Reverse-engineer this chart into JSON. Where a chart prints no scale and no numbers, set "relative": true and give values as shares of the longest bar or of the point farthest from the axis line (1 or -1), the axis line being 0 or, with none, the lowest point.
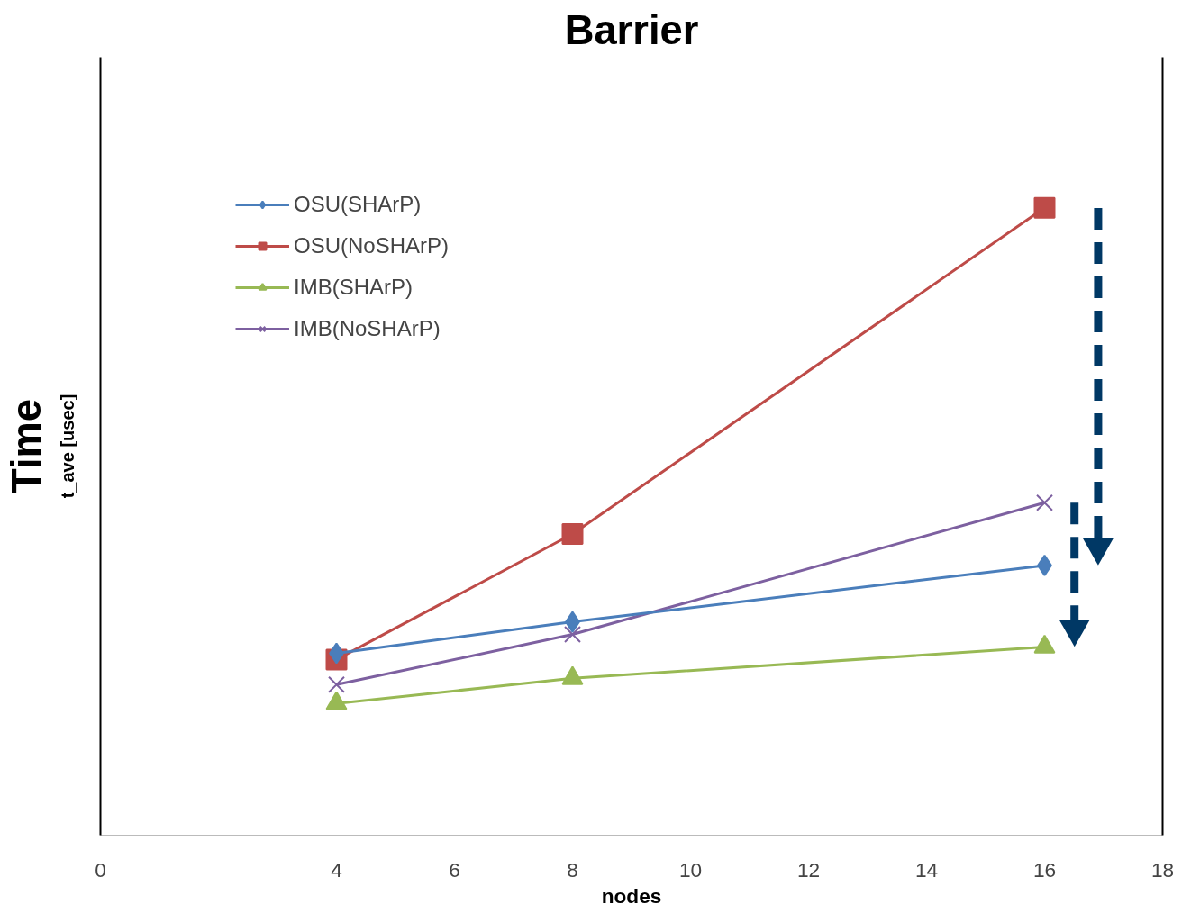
{
  "chart_data": {
    "type": "line",
    "title": "Barrier",
    "xlabel": "nodes",
    "ylabel": "t_ave [usec]",
    "annotations": [
      "Time"
    ],
    "x": [
      4,
      8,
      16
    ],
    "xlim": [
      0,
      18
    ],
    "xticks": [
      0,
      4,
      6,
      8,
      10,
      12,
      14,
      16,
      18
    ],
    "relative": true,
    "legend": "top left",
    "grid": false,
    "series": [
      {
        "name": "OSU(SHArP)",
        "color": "#4a7ebb",
        "marker": "diamond",
        "values": [
          0.29,
          0.34,
          0.43
        ]
      },
      {
        "name": "OSU(NoSHArP)",
        "color": "#be4b48",
        "marker": "square",
        "values": [
          0.28,
          0.48,
          1
        ]
      },
      {
        "name": "IMB(SHArP)",
        "color": "#98b954",
        "marker": "triangle",
        "values": [
          0.21,
          0.25,
          0.3
        ]
      },
      {
        "name": "IMB(NoSHArP)",
        "color": "#7d60a0",
        "marker": "cross",
        "values": [
          0.24,
          0.32,
          0.53
        ]
      }
    ]
  }
}
